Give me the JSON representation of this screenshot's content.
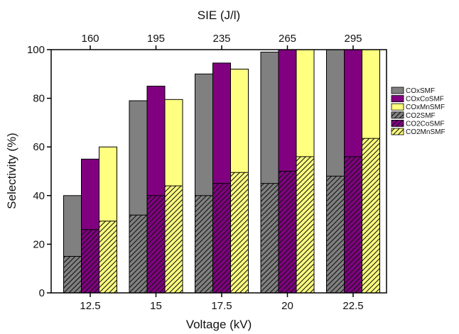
{
  "chart_data": {
    "type": "bar",
    "xlabel": "Voltage (kV)",
    "ylabel": "Selectivity (%)",
    "top_axis_label": "SIE (J/l)",
    "categories": [
      "12.5",
      "15",
      "17.5",
      "20",
      "22.5"
    ],
    "top_categories": [
      "160",
      "195",
      "235",
      "265",
      "295"
    ],
    "ylim": [
      0,
      100
    ],
    "yticks": [
      "0",
      "20",
      "40",
      "60",
      "80",
      "100"
    ],
    "grid": false,
    "legend_position": "right",
    "bar_groups": [
      "SMF",
      "CoSMF",
      "MnSMF"
    ],
    "series": [
      {
        "name": "COxSMF",
        "group": "SMF",
        "style": "solid",
        "color": "#808080",
        "values": [
          40,
          79,
          90,
          99,
          100
        ]
      },
      {
        "name": "COxCoSMF",
        "group": "CoSMF",
        "style": "solid",
        "color": "#800080",
        "values": [
          55,
          85,
          94.5,
          100,
          100
        ]
      },
      {
        "name": "COxMnSMF",
        "group": "MnSMF",
        "style": "solid",
        "color": "#ffff80",
        "values": [
          60,
          79.5,
          92,
          100,
          100
        ]
      },
      {
        "name": "CO2SMF",
        "group": "SMF",
        "style": "hatched",
        "color": "#808080",
        "values": [
          15,
          32,
          40,
          45,
          48
        ]
      },
      {
        "name": "CO2CoSMF",
        "group": "CoSMF",
        "style": "hatched",
        "color": "#800080",
        "values": [
          26,
          40,
          45,
          50,
          56
        ]
      },
      {
        "name": "CO2MnSMF",
        "group": "MnSMF",
        "style": "hatched",
        "color": "#ffff80",
        "values": [
          29.5,
          44,
          49.5,
          56,
          63.5
        ]
      }
    ]
  }
}
